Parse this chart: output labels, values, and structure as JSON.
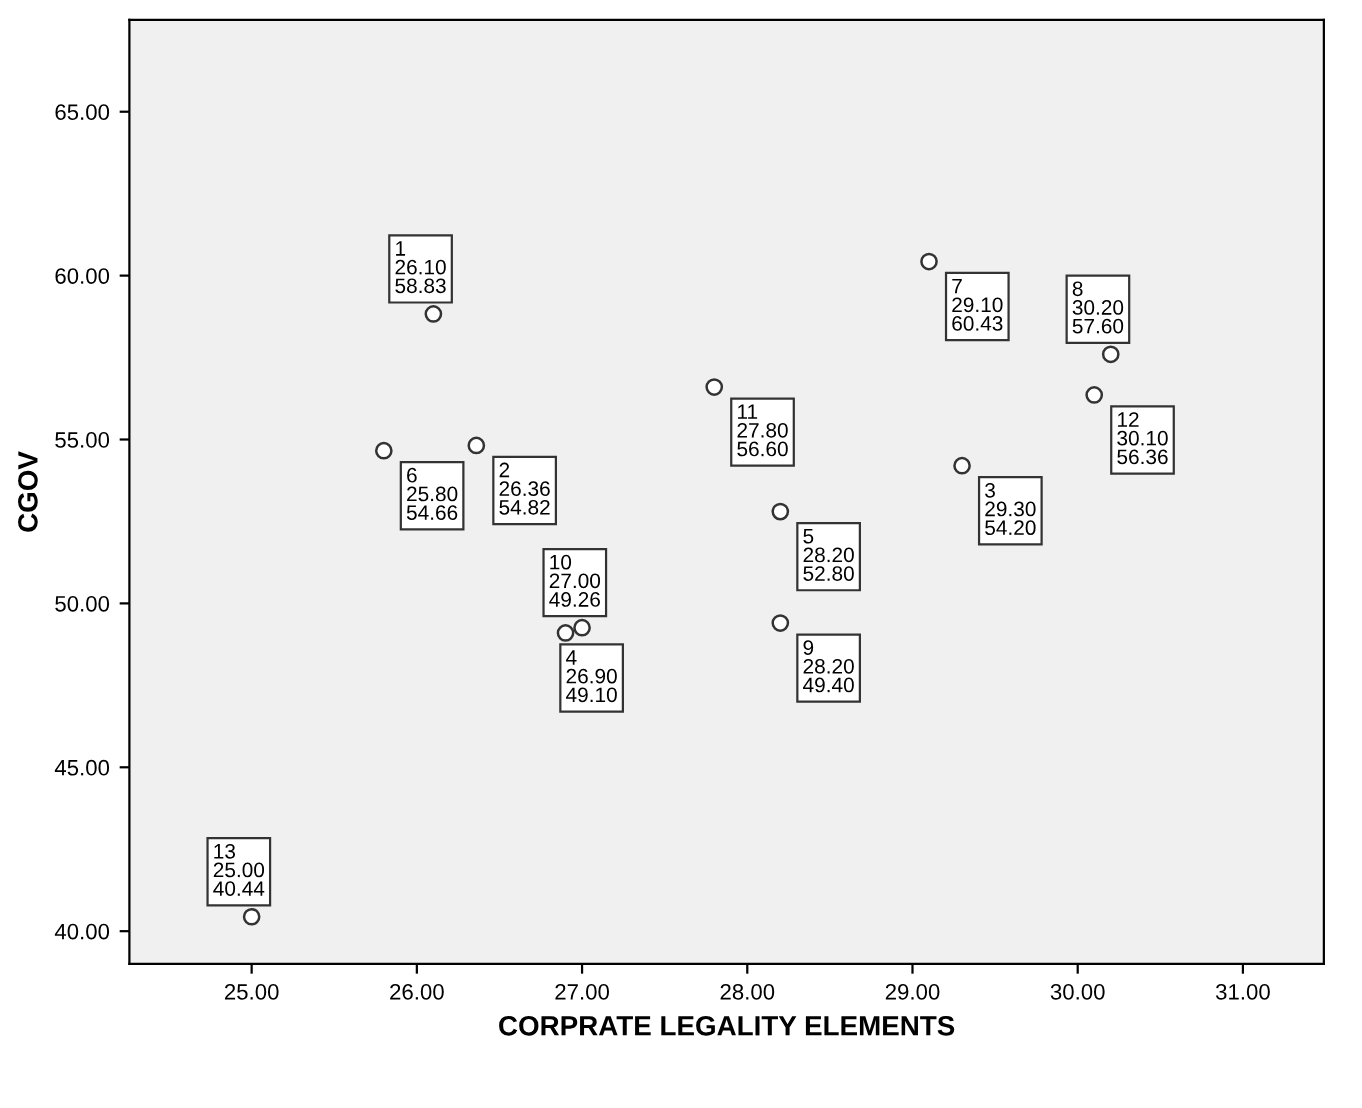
{
  "chart_data": {
    "type": "scatter",
    "xlabel": "CORPRATE LEGALITY ELEMENTS",
    "ylabel": "CGOV",
    "x": [
      26.1,
      26.36,
      29.3,
      26.9,
      28.2,
      25.8,
      29.1,
      30.2,
      28.2,
      27.0,
      27.8,
      30.1,
      25.0
    ],
    "values": [
      58.83,
      54.82,
      54.2,
      49.1,
      52.8,
      54.66,
      60.43,
      57.6,
      49.4,
      49.26,
      56.6,
      56.36,
      40.44
    ],
    "value_labels": [
      "1\n26.10\n58.83",
      "2\n26.36\n54.82",
      "3\n29.30\n54.20",
      "4\n26.90\n49.10",
      "5\n28.20\n52.80",
      "6\n25.80\n54.66",
      "7\n29.10\n60.43",
      "8\n30.20\n57.60",
      "9\n28.20\n49.40",
      "10\n27.00\n49.26",
      "11\n27.80\n56.60",
      "12\n30.10\n56.36",
      "13\n25.00\n40.44"
    ],
    "color": "#333333",
    "marker": "circle",
    "grid": false,
    "xlim": [
      24.26,
      31.49
    ],
    "ylim": [
      39.0,
      67.8
    ],
    "xticks": [
      {
        "value": 25,
        "label": "25.00"
      },
      {
        "value": 26,
        "label": "26.00"
      },
      {
        "value": 27,
        "label": "27.00"
      },
      {
        "value": 28,
        "label": "28.00"
      },
      {
        "value": 29,
        "label": "29.00"
      },
      {
        "value": 30,
        "label": "30.00"
      },
      {
        "value": 31,
        "label": "31.00"
      }
    ],
    "yticks": [
      {
        "value": 40,
        "label": "40.00"
      },
      {
        "value": 45,
        "label": "45.00"
      },
      {
        "value": 50,
        "label": "50.00"
      },
      {
        "value": 55,
        "label": "55.00"
      },
      {
        "value": 60,
        "label": "60.00"
      },
      {
        "value": 65,
        "label": "65.00"
      }
    ]
  }
}
